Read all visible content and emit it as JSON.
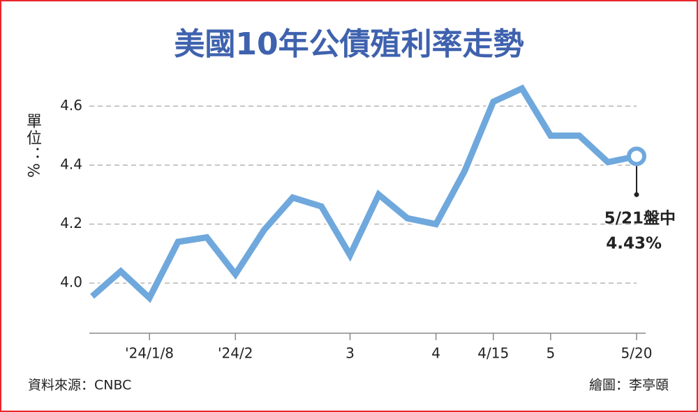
{
  "chart_data": {
    "type": "line",
    "title": "美國10年公債殖利率走勢",
    "y_label": "單位：%",
    "source": "資料來源：CNBC",
    "credit": "繪圖：李亭頤",
    "annotation": "5/21盤中",
    "categories": [
      null,
      null,
      "'24/1/8",
      null,
      null,
      "'24/2",
      null,
      null,
      null,
      "3",
      null,
      null,
      "4",
      null,
      "4/15",
      null,
      "5",
      null,
      null,
      "5/20"
    ],
    "values": [
      3.955,
      4.04,
      3.95,
      4.14,
      4.155,
      4.03,
      4.18,
      4.29,
      4.26,
      4.095,
      4.3,
      4.22,
      4.2,
      4.38,
      4.615,
      4.66,
      4.5,
      4.5,
      4.41,
      4.43
    ],
    "value_labels": [
      null,
      null,
      null,
      null,
      null,
      null,
      null,
      null,
      null,
      null,
      null,
      null,
      null,
      null,
      null,
      null,
      null,
      null,
      null,
      "4.43%"
    ],
    "color": "#6fa8dc",
    "ylim": [
      3.83,
      4.7
    ],
    "yticks": [
      {
        "value": 4,
        "label": "4.0"
      },
      4.2,
      4.4,
      4.6
    ],
    "grid": true
  }
}
